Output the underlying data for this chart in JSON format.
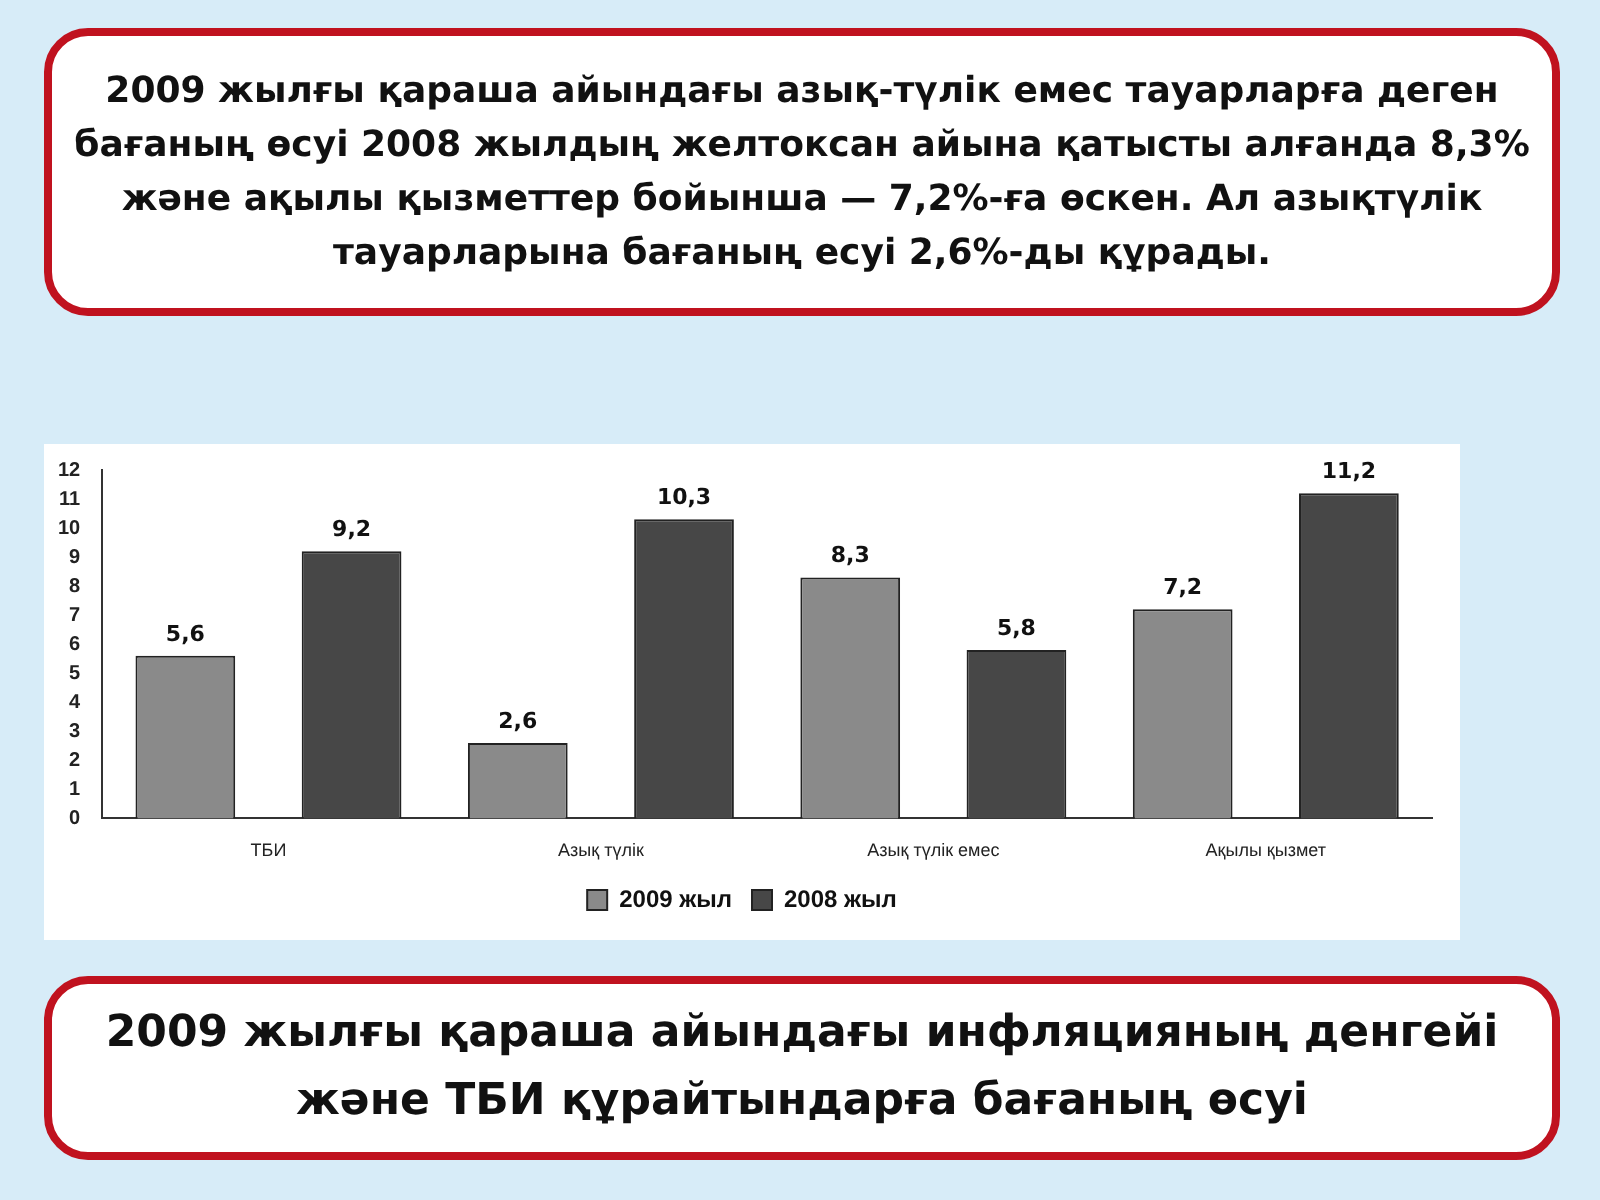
{
  "chart_data": {
    "type": "bar",
    "title": "2009 жылғы қараша айындағы инфляцияның денгейі және ТБИ құрайтындарға бағаның өсуі",
    "annotations": [
      "2009 жылғы қараша айындағы азық-түлік емес тауарларға деген бағаның өсуі 2008 жылдың желтоксан айына қатысты алғанда 8,3% және ақылы қызметтер бойынша — 7,2%-ға өскен. Ал азықтүлік тауарларына бағаның есуі 2,6%-ды құрады."
    ],
    "categories": [
      "ТБИ",
      "Азық түлік",
      "Азық түлік емес",
      "Ақылы қызмет"
    ],
    "series": [
      {
        "name": "2009 жыл",
        "color": "#8a8a8a",
        "values": [
          5.6,
          2.6,
          8.3,
          7.2
        ],
        "value_labels": [
          "5,6",
          "2,6",
          "8,3",
          "7,2"
        ]
      },
      {
        "name": "2008 жыл",
        "color": "#474747",
        "values": [
          9.2,
          10.3,
          5.8,
          11.2
        ],
        "value_labels": [
          "9,2",
          "10,3",
          "5,8",
          "11,2"
        ]
      }
    ],
    "ylim": [
      0,
      12
    ],
    "yticks": [
      0,
      1,
      2,
      3,
      4,
      5,
      6,
      7,
      8,
      9,
      10,
      11,
      12
    ],
    "grid": false,
    "legend": "bottom"
  }
}
